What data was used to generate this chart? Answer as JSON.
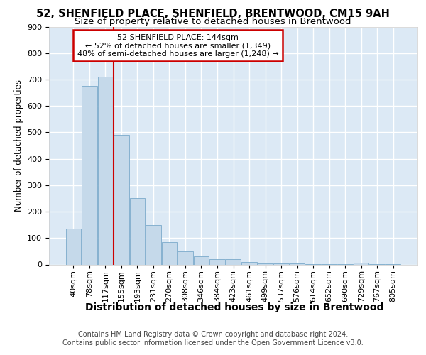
{
  "title1": "52, SHENFIELD PLACE, SHENFIELD, BRENTWOOD, CM15 9AH",
  "title2": "Size of property relative to detached houses in Brentwood",
  "xlabel": "Distribution of detached houses by size in Brentwood",
  "ylabel": "Number of detached properties",
  "bar_values": [
    135,
    675,
    710,
    490,
    250,
    150,
    85,
    50,
    30,
    20,
    20,
    10,
    5,
    4,
    3,
    2,
    1,
    1,
    8,
    1,
    1
  ],
  "bar_labels": [
    "40sqm",
    "78sqm",
    "117sqm",
    "155sqm",
    "193sqm",
    "231sqm",
    "270sqm",
    "308sqm",
    "346sqm",
    "384sqm",
    "423sqm",
    "461sqm",
    "499sqm",
    "537sqm",
    "576sqm",
    "614sqm",
    "652sqm",
    "690sqm",
    "729sqm",
    "767sqm",
    "805sqm"
  ],
  "bar_color": "#c5d9ea",
  "bar_edge_color": "#7aaacb",
  "vline_index": 3,
  "annotation_text1": "52 SHENFIELD PLACE: 144sqm",
  "annotation_text2": "← 52% of detached houses are smaller (1,349)",
  "annotation_text3": "48% of semi-detached houses are larger (1,248) →",
  "annotation_box_color": "white",
  "annotation_border_color": "#cc0000",
  "vline_color": "#cc0000",
  "ylim": [
    0,
    900
  ],
  "yticks": [
    0,
    100,
    200,
    300,
    400,
    500,
    600,
    700,
    800,
    900
  ],
  "footer1": "Contains HM Land Registry data © Crown copyright and database right 2024.",
  "footer2": "Contains public sector information licensed under the Open Government Licence v3.0.",
  "bg_color": "#dce9f5",
  "grid_color": "white",
  "title1_fontsize": 10.5,
  "title2_fontsize": 9.5,
  "xlabel_fontsize": 10,
  "ylabel_fontsize": 8.5,
  "tick_fontsize": 8,
  "annot_fontsize": 8,
  "footer_fontsize": 7
}
